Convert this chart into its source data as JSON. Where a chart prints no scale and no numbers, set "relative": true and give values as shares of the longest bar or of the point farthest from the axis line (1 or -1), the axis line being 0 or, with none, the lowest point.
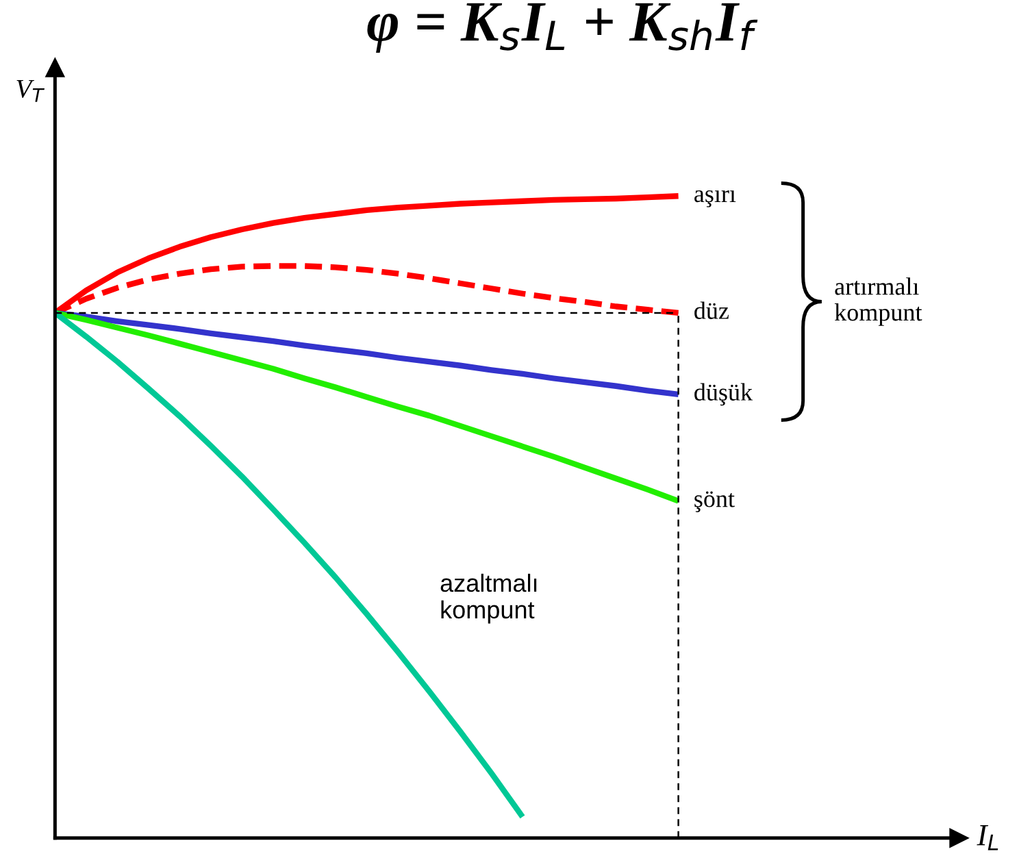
{
  "chart_data": {
    "type": "line",
    "relative": true,
    "title": "φ = K$_{s}$I$_{L}$ + K$_{sh}$I$_{f}$",
    "xlabel": "I$_{L}$",
    "ylabel": "V$_{T}$",
    "legend": false,
    "categories": [
      null,
      null,
      null,
      null,
      null,
      null,
      null,
      null,
      null,
      null,
      null,
      null,
      null,
      null,
      null,
      null,
      null,
      null,
      null,
      null,
      null,
      null,
      null,
      null,
      null,
      null,
      null,
      null,
      null,
      null
    ],
    "series": [
      {
        "name": "aşırı",
        "color": "#ff0000",
        "line_style": "solid",
        "values": [
          0.818,
          0.853,
          0.881,
          0.903,
          0.921,
          0.936,
          0.948,
          0.958,
          0.966,
          0.972,
          0.978,
          0.982,
          0.985,
          0.988,
          0.99,
          0.992,
          0.994,
          0.995,
          0.996,
          0.998,
          1.0,
          null,
          null,
          null,
          null,
          null,
          null,
          null,
          null,
          null
        ]
      },
      {
        "name": "düz",
        "color": "#ff0000",
        "line_style": "dashed",
        "values": [
          0.818,
          0.84,
          0.857,
          0.87,
          0.879,
          0.886,
          0.89,
          0.891,
          0.891,
          0.889,
          0.885,
          0.879,
          0.872,
          0.864,
          0.856,
          0.848,
          0.841,
          0.835,
          0.828,
          0.823,
          0.818,
          null,
          null,
          null,
          null,
          null,
          null,
          null,
          null,
          null
        ]
      },
      {
        "name": "düşük",
        "color": "#3333cc",
        "line_style": "solid",
        "values": [
          0.818,
          0.812,
          0.805,
          0.799,
          0.793,
          0.786,
          0.78,
          0.774,
          0.767,
          0.761,
          0.755,
          0.748,
          0.742,
          0.736,
          0.729,
          0.723,
          0.716,
          0.71,
          0.704,
          0.697,
          0.691,
          null,
          null,
          null,
          null,
          null,
          null,
          null,
          null,
          null
        ]
      },
      {
        "name": "şönt",
        "color": "#22ee00",
        "line_style": "solid",
        "values": [
          0.818,
          0.807,
          0.795,
          0.783,
          0.77,
          0.757,
          0.744,
          0.731,
          0.716,
          0.702,
          0.687,
          0.672,
          0.658,
          0.642,
          0.626,
          0.61,
          0.594,
          0.577,
          0.56,
          0.543,
          0.525,
          null,
          null,
          null,
          null,
          null,
          null,
          null,
          null,
          null
        ]
      },
      {
        "name": "azaltmalı\nkompunt",
        "color": "#00c896",
        "line_style": "solid",
        "values": [
          0.818,
          0.781,
          0.742,
          0.7,
          0.657,
          0.611,
          0.563,
          0.512,
          0.46,
          0.406,
          0.349,
          0.29,
          0.229,
          0.166,
          0.101,
          0.033,
          null,
          null,
          null,
          null,
          null,
          null,
          null,
          null,
          null,
          null,
          null,
          null,
          null,
          null
        ]
      }
    ],
    "ref_lines": [
      {
        "axis": "y",
        "value": 0.818,
        "color": "#000000",
        "line_style": "dashed"
      }
    ],
    "annotations": [
      "artırmalı\nkompunt"
    ]
  }
}
